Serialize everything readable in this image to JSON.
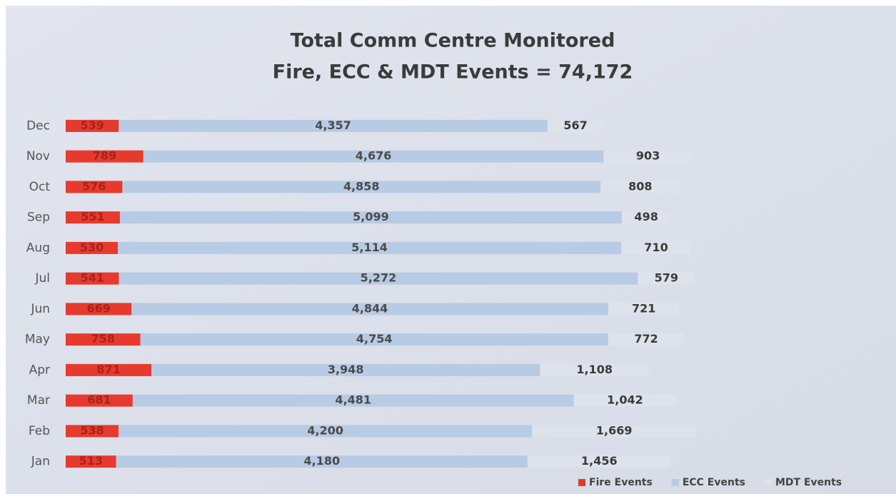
{
  "chart_data": {
    "type": "stacked_barh",
    "title": [
      "Total Comm Centre Monitored",
      "Fire, ECC & MDT Events = 74,172"
    ],
    "categories": [
      "Dec",
      "Nov",
      "Oct",
      "Sep",
      "Aug",
      "Jul",
      "Jun",
      "May",
      "Apr",
      "Mar",
      "Feb",
      "Jan"
    ],
    "series": [
      {
        "name": "Fire Events",
        "color": "#e63a2e",
        "label_color": "#a8231c",
        "values": [
          539,
          789,
          576,
          551,
          530,
          541,
          669,
          758,
          871,
          681,
          538,
          513
        ]
      },
      {
        "name": "ECC Events",
        "color": "#b8cbe4",
        "label_color": "#4a4a4a",
        "values": [
          4357,
          4676,
          4858,
          5099,
          5114,
          5272,
          4844,
          4754,
          3948,
          4481,
          4200,
          4180
        ],
        "value_labels": [
          "4,357",
          "4,676",
          "4,858",
          "5,099",
          "5,114",
          "5,272",
          "4,844",
          "4,754",
          "3,948",
          "4,481",
          "4,200",
          "4,180"
        ]
      },
      {
        "name": "MDT Events",
        "color": "#dee2eb",
        "label_color": "#3a3a3a",
        "values": [
          567,
          903,
          808,
          498,
          710,
          579,
          721,
          772,
          1108,
          1042,
          1669,
          1456
        ],
        "value_labels": [
          "567",
          "903",
          "808",
          "498",
          "710",
          "579",
          "721",
          "772",
          "1,108",
          "1,042",
          "1,669",
          "1,456"
        ]
      }
    ],
    "xlim": [
      0,
      8400
    ],
    "legend": "bottom-right"
  }
}
